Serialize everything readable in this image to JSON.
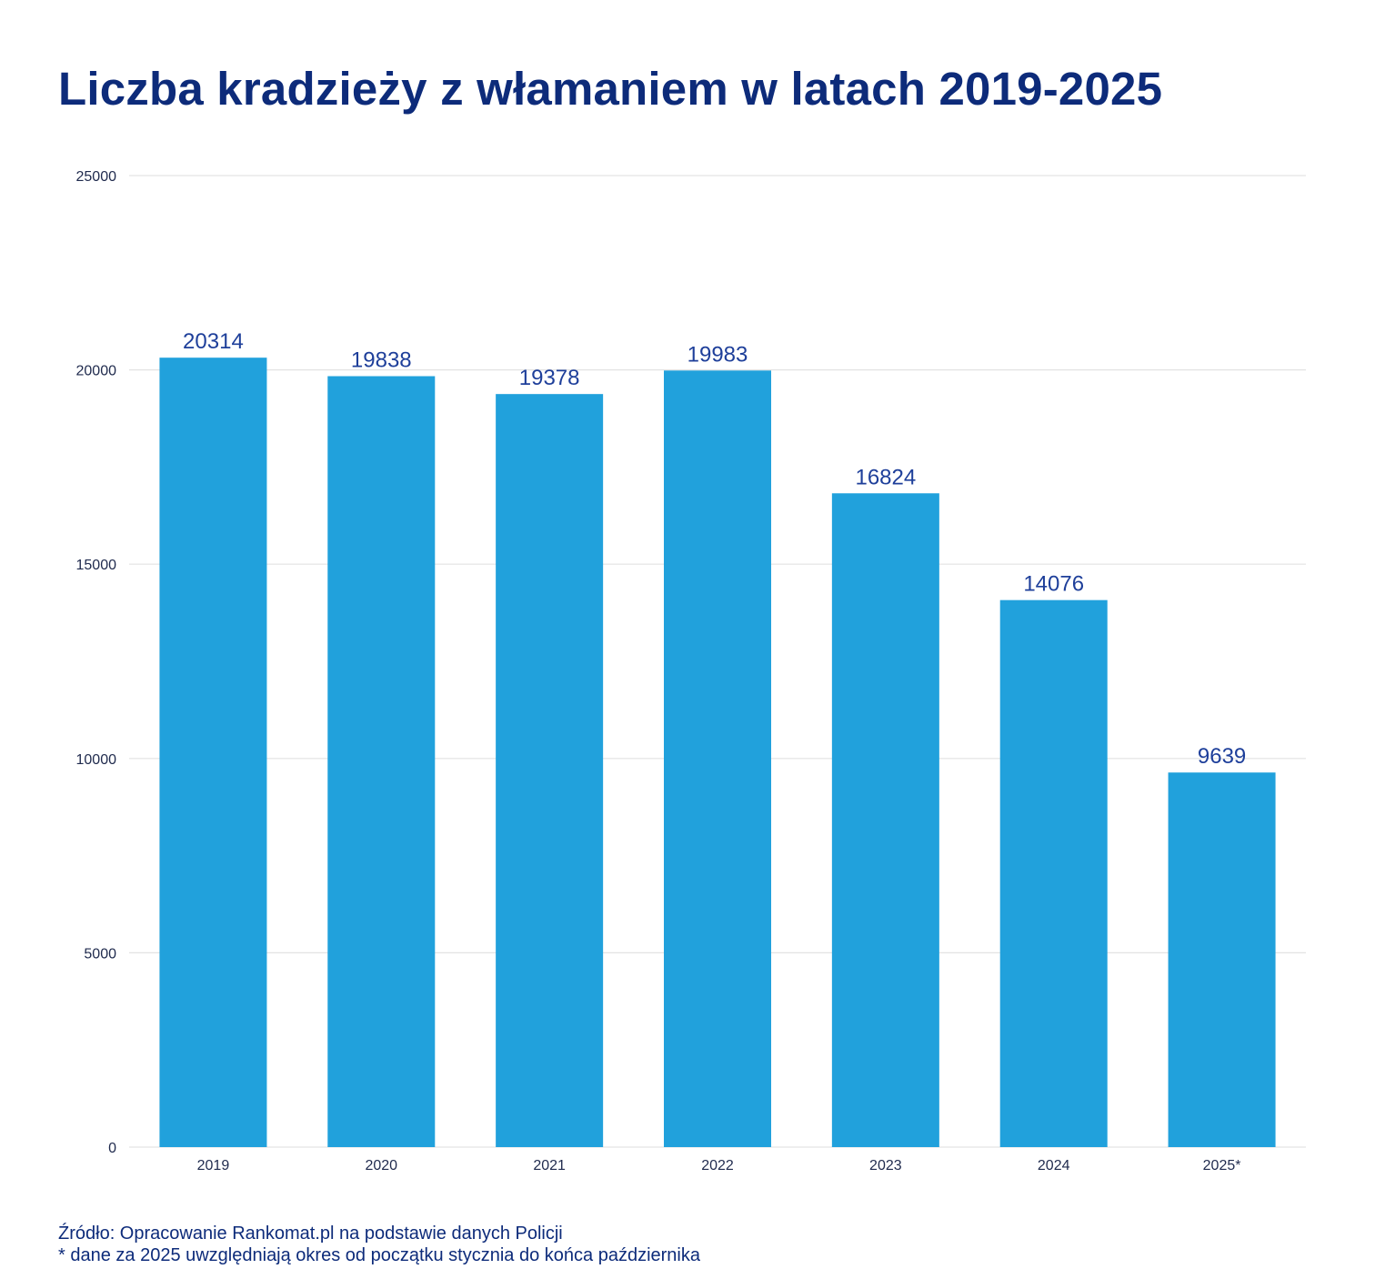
{
  "chart_data": {
    "type": "bar",
    "title": "Liczba kradzieży z włamaniem w latach 2019-2025",
    "categories": [
      "2019",
      "2020",
      "2021",
      "2022",
      "2023",
      "2024",
      "2025*"
    ],
    "values": [
      20314,
      19838,
      19378,
      19983,
      16824,
      14076,
      9639
    ],
    "value_labels": [
      "20314",
      "19838",
      "19378",
      "19983",
      "16824",
      "14076",
      "9639"
    ],
    "yticks": [
      "0",
      "5000",
      "10000",
      "15000",
      "20000",
      "25000"
    ],
    "ylim": [
      0,
      25000
    ],
    "xlabel": "",
    "ylabel": "",
    "grid": true
  },
  "colors": {
    "bar": "#21a1dc",
    "title": "#0d2b7a",
    "value_label": "#1e3f9a",
    "tick_label": "#1f2a4d",
    "grid": "#e3e3e3"
  },
  "footer": {
    "source": "Źródło: Opracowanie Rankomat.pl na podstawie danych Policji",
    "note": "* dane za 2025 uwzględniają okres od początku stycznia do końca października"
  }
}
